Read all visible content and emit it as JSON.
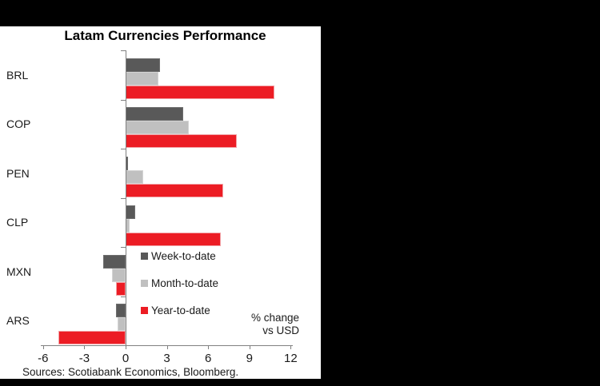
{
  "window": {
    "background_color": "#000000",
    "panel_color": "#ffffff"
  },
  "chart_data": {
    "type": "bar",
    "orientation": "horizontal",
    "title": "Latam Currencies Performance",
    "categories": [
      "BRL",
      "COP",
      "PEN",
      "CLP",
      "MXN",
      "ARS"
    ],
    "series": [
      {
        "name": "Week-to-date",
        "color": "#595959",
        "border_color": "#6e6e6e",
        "values": [
          2.5,
          4.2,
          0.2,
          0.7,
          -1.6,
          -0.7
        ]
      },
      {
        "name": "Month-to-date",
        "color": "#c0c0c0",
        "border_color": "#d4d4d4",
        "values": [
          2.4,
          4.6,
          1.3,
          0.3,
          -1.0,
          -0.6
        ]
      },
      {
        "name": "Year-to-date",
        "color": "#ec1c24",
        "border_color": "#f2a2a6",
        "values": [
          10.8,
          8.1,
          7.1,
          6.9,
          -0.7,
          -4.9
        ]
      }
    ],
    "x_axis": {
      "min": -6,
      "max": 12,
      "tick_values": [
        -6,
        -3,
        0,
        3,
        6,
        9,
        12
      ],
      "tick_labels": [
        "-6",
        "-3",
        "0",
        "3",
        "6",
        "9",
        "12"
      ]
    },
    "axis_note_lines": [
      "% change",
      "vs USD"
    ],
    "legend_position": "inside-bottom-right",
    "grid": false,
    "axis_color": "#808080"
  },
  "footer": {
    "sources": "Sources: Scotiabank Economics, Bloomberg."
  }
}
